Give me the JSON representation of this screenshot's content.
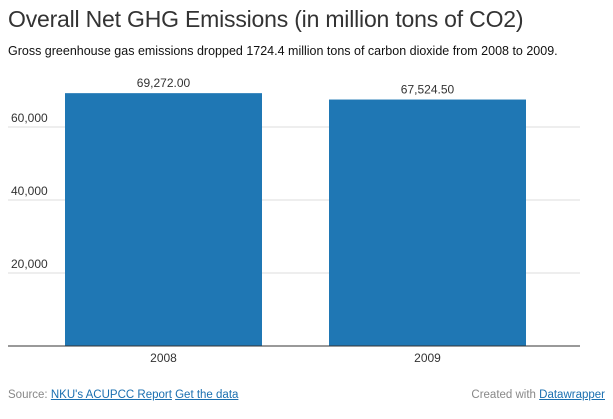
{
  "header": {
    "title": "Overall Net GHG Emissions (in million tons of CO2)",
    "subtitle": "Gross greenhouse gas emissions dropped 1724.4 million tons of carbon dioxide from 2008 to 2009."
  },
  "chart_data": {
    "type": "bar",
    "categories": [
      "2008",
      "2009"
    ],
    "values": [
      69272.0,
      67524.5
    ],
    "value_labels": [
      "69,272.00",
      "67,524.50"
    ],
    "ylim": [
      0,
      70000
    ],
    "yticks": [
      20000,
      40000,
      60000
    ],
    "ytick_labels": [
      "20,000",
      "40,000",
      "60,000"
    ],
    "grid": true,
    "bar_color": "#1f77b4",
    "title": "Overall Net GHG Emissions (in million tons of CO2)",
    "xlabel": "",
    "ylabel": ""
  },
  "footer": {
    "source_prefix": "Source:",
    "source_link": "NKU's ACUPCC Report",
    "data_link": "Get the data",
    "created_prefix": "Created with",
    "created_link": "Datawrapper"
  },
  "colors": {
    "bar": "#1f77b4",
    "grid": "#dddddd",
    "axis": "#333333",
    "link": "#1a6fb0"
  }
}
